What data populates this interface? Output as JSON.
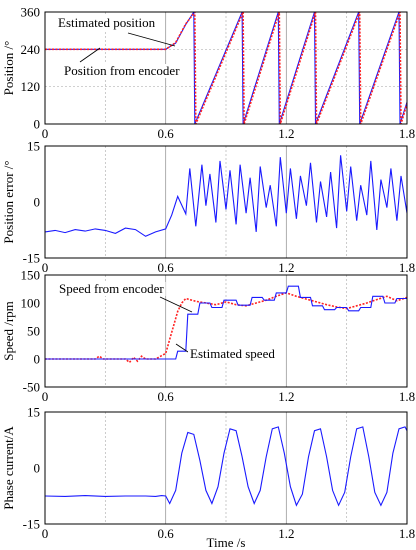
{
  "chart_data": [
    {
      "type": "line",
      "ylabel": "Position /°",
      "xlim": [
        0,
        1.8
      ],
      "ylim": [
        0,
        360
      ],
      "xticks": [
        "0",
        "0.6",
        "1.2",
        "1.8"
      ],
      "yticks": [
        "0",
        "120",
        "240",
        "360"
      ],
      "grid": "vertical",
      "annotations": [
        {
          "text": "Estimated position"
        },
        {
          "text": "Position from encoder"
        }
      ],
      "series": [
        {
          "name": "Position from encoder",
          "color": "#1a1aff",
          "x": [
            0,
            0.6,
            0.65,
            0.7,
            0.74,
            0.745,
            0.98,
            0.985,
            1.16,
            1.165,
            1.34,
            1.345,
            1.56,
            1.565,
            1.76,
            1.765,
            1.8
          ],
          "y": [
            240,
            240,
            260,
            320,
            360,
            0,
            360,
            0,
            360,
            0,
            360,
            0,
            360,
            0,
            360,
            0,
            70
          ]
        },
        {
          "name": "Estimated position",
          "color": "#ff2222",
          "x": [
            0,
            0.6,
            0.65,
            0.7,
            0.745,
            0.75,
            0.985,
            0.99,
            1.165,
            1.17,
            1.345,
            1.35,
            1.565,
            1.57,
            1.765,
            1.77,
            1.8
          ],
          "y": [
            240,
            240,
            262,
            322,
            360,
            0,
            360,
            0,
            360,
            0,
            360,
            0,
            360,
            0,
            360,
            0,
            65
          ]
        }
      ]
    },
    {
      "type": "line",
      "ylabel": "Position error /°",
      "xlim": [
        0,
        1.8
      ],
      "ylim": [
        -15,
        15
      ],
      "xticks": [
        "0",
        "0.6",
        "1.2",
        "1.8"
      ],
      "yticks": [
        "-15",
        "0",
        "15"
      ],
      "grid": "vertical",
      "series": [
        {
          "color": "#1a1aff",
          "x": [
            0,
            0.05,
            0.1,
            0.15,
            0.2,
            0.25,
            0.3,
            0.35,
            0.4,
            0.45,
            0.5,
            0.55,
            0.6,
            0.63,
            0.66,
            0.7,
            0.72,
            0.75,
            0.78,
            0.8,
            0.82,
            0.85,
            0.87,
            0.9,
            0.92,
            0.95,
            0.97,
            1.0,
            1.02,
            1.05,
            1.07,
            1.1,
            1.12,
            1.15,
            1.17,
            1.2,
            1.22,
            1.25,
            1.27,
            1.3,
            1.32,
            1.35,
            1.37,
            1.4,
            1.42,
            1.45,
            1.47,
            1.5,
            1.52,
            1.55,
            1.57,
            1.6,
            1.62,
            1.65,
            1.67,
            1.7,
            1.72,
            1.75,
            1.77,
            1.8
          ],
          "y": [
            -8,
            -7.6,
            -8.2,
            -7.4,
            -7.8,
            -7.2,
            -7.6,
            -8.4,
            -7.0,
            -7.4,
            -9.2,
            -8.0,
            -7.2,
            -3.5,
            1.5,
            -3.2,
            9.0,
            -6.5,
            10.0,
            -1.0,
            7.5,
            -5.5,
            11.0,
            -2.0,
            8.5,
            -6.0,
            10.0,
            -3.0,
            6.5,
            -8.0,
            9.5,
            -1.5,
            4.5,
            -6.5,
            12.0,
            -3.0,
            9.0,
            -4.5,
            7.0,
            -1.0,
            10.5,
            -5.5,
            5.5,
            -4.0,
            8.0,
            -7.0,
            12.5,
            -2.5,
            9.5,
            -5.0,
            4.5,
            -3.5,
            11.0,
            -7.5,
            6.0,
            -1.5,
            9.0,
            -5.0,
            7.0,
            -3.0
          ]
        }
      ]
    },
    {
      "type": "line",
      "ylabel": "Speed /rpm",
      "xlim": [
        0,
        1.8
      ],
      "ylim": [
        -50,
        150
      ],
      "xticks": [
        "0",
        "0.6",
        "1.2",
        "1.8"
      ],
      "yticks": [
        "-50",
        "0",
        "50",
        "100",
        "150"
      ],
      "grid": "vertical",
      "annotations": [
        {
          "text": "Speed from encoder"
        },
        {
          "text": "Estimated speed"
        }
      ],
      "series": [
        {
          "name": "Speed from encoder",
          "color": "#ff2222",
          "x": [
            0,
            0.25,
            0.27,
            0.29,
            0.4,
            0.42,
            0.44,
            0.46,
            0.48,
            0.5,
            0.55,
            0.6,
            0.62,
            0.64,
            0.66,
            0.68,
            0.7,
            0.75,
            0.8,
            0.85,
            0.9,
            0.95,
            1.0,
            1.05,
            1.1,
            1.15,
            1.2,
            1.25,
            1.3,
            1.35,
            1.4,
            1.45,
            1.5,
            1.55,
            1.6,
            1.65,
            1.7,
            1.75,
            1.8
          ],
          "y": [
            0,
            0,
            5,
            0,
            0,
            -6,
            3,
            -4,
            5,
            0,
            0,
            10,
            35,
            60,
            85,
            100,
            108,
            103,
            100,
            97,
            102,
            97,
            95,
            100,
            105,
            112,
            118,
            112,
            107,
            102,
            97,
            93,
            90,
            95,
            100,
            106,
            112,
            104,
            110
          ]
        },
        {
          "name": "Estimated speed",
          "color": "#1a1aff",
          "x": [
            0,
            0.6,
            0.65,
            0.66,
            0.7,
            0.71,
            0.76,
            0.77,
            0.82,
            0.83,
            0.88,
            0.89,
            0.95,
            0.96,
            1.02,
            1.03,
            1.08,
            1.09,
            1.14,
            1.15,
            1.2,
            1.21,
            1.26,
            1.27,
            1.32,
            1.33,
            1.38,
            1.39,
            1.44,
            1.45,
            1.5,
            1.51,
            1.56,
            1.57,
            1.62,
            1.63,
            1.68,
            1.69,
            1.74,
            1.75,
            1.8
          ],
          "y": [
            0,
            0,
            0,
            14,
            14,
            80,
            80,
            100,
            100,
            92,
            92,
            105,
            105,
            96,
            96,
            110,
            110,
            105,
            105,
            118,
            118,
            130,
            130,
            110,
            110,
            95,
            95,
            88,
            88,
            92,
            92,
            86,
            86,
            92,
            92,
            112,
            112,
            100,
            100,
            108,
            108
          ]
        }
      ]
    },
    {
      "type": "line",
      "ylabel": "Phase current/A",
      "xlabel": "Time /s",
      "xlim": [
        0,
        1.8
      ],
      "ylim": [
        -15,
        15
      ],
      "xticks": [
        "0",
        "0.6",
        "1.2",
        "1.8"
      ],
      "yticks": [
        "-15",
        "0",
        "15"
      ],
      "grid": "vertical",
      "series": [
        {
          "color": "#1a1aff",
          "x": [
            0,
            0.1,
            0.2,
            0.3,
            0.4,
            0.5,
            0.55,
            0.58,
            0.6,
            0.62,
            0.65,
            0.68,
            0.71,
            0.74,
            0.77,
            0.8,
            0.83,
            0.86,
            0.89,
            0.92,
            0.95,
            0.98,
            1.01,
            1.04,
            1.07,
            1.1,
            1.13,
            1.16,
            1.19,
            1.22,
            1.25,
            1.28,
            1.31,
            1.34,
            1.37,
            1.4,
            1.43,
            1.46,
            1.49,
            1.52,
            1.55,
            1.58,
            1.61,
            1.64,
            1.67,
            1.7,
            1.73,
            1.76,
            1.79,
            1.8
          ],
          "y": [
            -7.5,
            -7.6,
            -7.4,
            -7.6,
            -7.5,
            -7.5,
            -7.6,
            -7.4,
            -7.5,
            -9.5,
            -6.0,
            4.0,
            9.5,
            9.0,
            2.0,
            -6.0,
            -9.5,
            -5.0,
            4.0,
            10.5,
            10.0,
            3.0,
            -5.0,
            -9.5,
            -6.0,
            3.0,
            10.5,
            11.0,
            4.0,
            -5.0,
            -10.0,
            -7.0,
            3.0,
            10.0,
            10.5,
            3.0,
            -6.0,
            -10.0,
            -6.5,
            3.0,
            10.5,
            11.0,
            3.0,
            -6.5,
            -10.0,
            -6.5,
            4.0,
            10.5,
            11.0,
            10.0
          ]
        }
      ]
    }
  ]
}
